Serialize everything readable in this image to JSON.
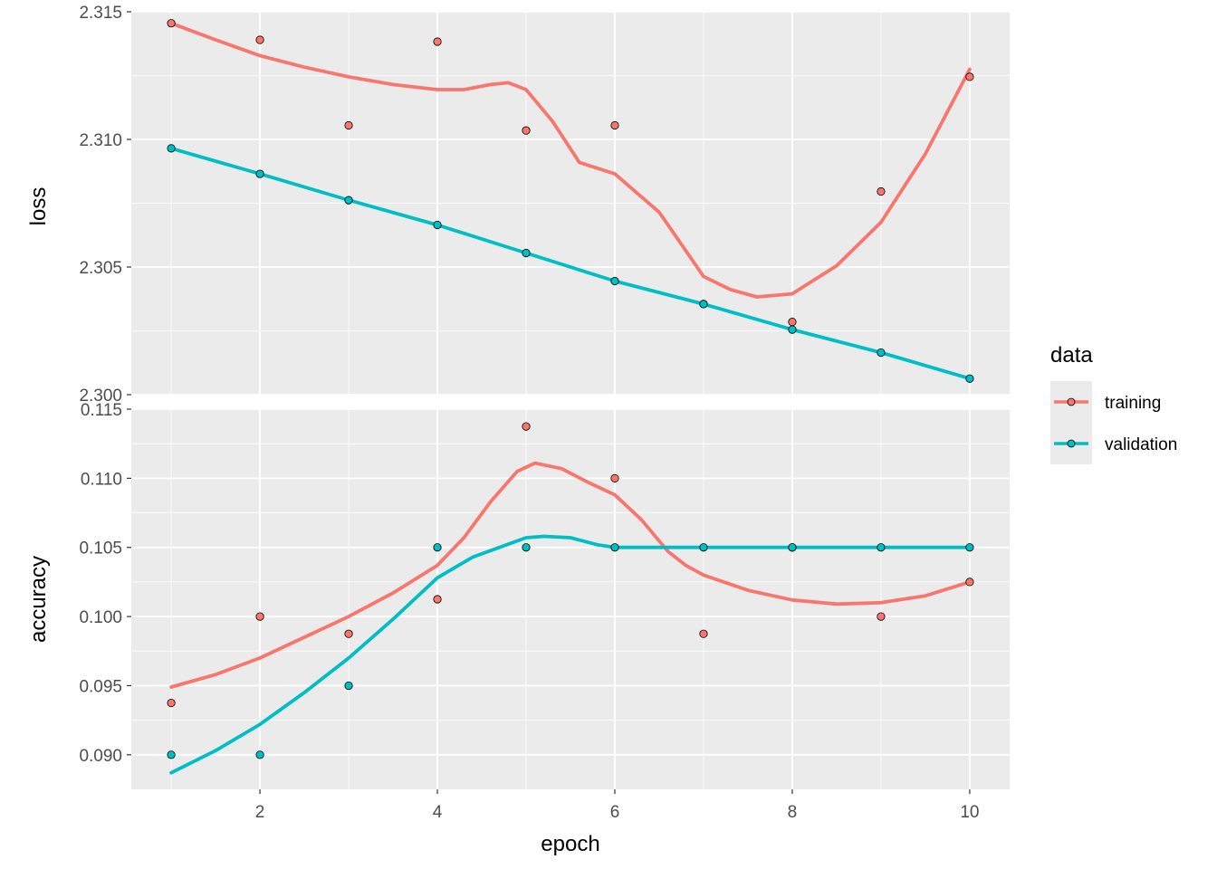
{
  "chart_data": [
    {
      "type": "line",
      "panel": "loss",
      "ylabel": "loss",
      "ylim": [
        2.3,
        2.315
      ],
      "yticks": [
        2.3,
        2.305,
        2.31,
        2.315
      ],
      "ytick_labels": [
        "2.300",
        "2.305",
        "2.310",
        "2.315"
      ],
      "grid": true,
      "series": [
        {
          "name": "training",
          "color": "#F8766D",
          "x": [
            1,
            2,
            3,
            4,
            5,
            6,
            7,
            8,
            9,
            10
          ],
          "values": [
            2.31455,
            2.3139,
            2.31055,
            2.31383,
            2.31035,
            2.31055,
            2.30355,
            2.30285,
            2.30796,
            2.31245
          ],
          "smooth_x": [
            1,
            1.5,
            2,
            2.5,
            3,
            3.5,
            4,
            4.3,
            4.6,
            4.8,
            5,
            5.3,
            5.6,
            6,
            6.5,
            7,
            7.3,
            7.6,
            8,
            8.5,
            9,
            9.5,
            10
          ],
          "smooth_y": [
            2.31455,
            2.3139,
            2.31328,
            2.31283,
            2.31245,
            2.31215,
            2.31195,
            2.31195,
            2.31215,
            2.31222,
            2.31195,
            2.3107,
            2.3091,
            2.30865,
            2.30715,
            2.30463,
            2.30412,
            2.30383,
            2.30395,
            2.30505,
            2.30675,
            2.30943,
            2.31275
          ]
        },
        {
          "name": "validation",
          "color": "#00BFC4",
          "x": [
            1,
            2,
            3,
            4,
            5,
            6,
            7,
            8,
            9,
            10
          ],
          "values": [
            2.30965,
            2.30865,
            2.30762,
            2.30665,
            2.30555,
            2.30445,
            2.30355,
            2.30255,
            2.30165,
            2.30063
          ],
          "smooth_x": [
            1,
            2,
            3,
            4,
            5,
            6,
            7,
            8,
            9,
            10
          ],
          "smooth_y": [
            2.30965,
            2.30865,
            2.30762,
            2.30665,
            2.30555,
            2.30445,
            2.30355,
            2.30255,
            2.30165,
            2.30063
          ]
        }
      ]
    },
    {
      "type": "line",
      "panel": "accuracy",
      "ylabel": "accuracy",
      "xlabel": "epoch",
      "ylim": [
        0.0875,
        0.115
      ],
      "xlim": [
        0.55,
        10.45
      ],
      "yticks": [
        0.09,
        0.095,
        0.1,
        0.105,
        0.11,
        0.115
      ],
      "ytick_labels": [
        "0.090",
        "0.095",
        "0.100",
        "0.105",
        "0.110",
        "0.115"
      ],
      "xticks": [
        2,
        4,
        6,
        8,
        10
      ],
      "xtick_labels": [
        "2",
        "4",
        "6",
        "8",
        "10"
      ],
      "grid": true,
      "series": [
        {
          "name": "training",
          "color": "#F8766D",
          "x": [
            1,
            2,
            3,
            4,
            5,
            6,
            7,
            8,
            9,
            10
          ],
          "values": [
            0.09375,
            0.1,
            0.09875,
            0.10125,
            0.11375,
            0.11,
            0.09875,
            0.105,
            0.1,
            0.1025
          ],
          "smooth_x": [
            1,
            1.5,
            2,
            2.5,
            3,
            3.5,
            4,
            4.3,
            4.6,
            4.9,
            5.1,
            5.4,
            5.7,
            6,
            6.3,
            6.6,
            6.8,
            7,
            7.5,
            8,
            8.5,
            9,
            9.5,
            10
          ],
          "smooth_y": [
            0.0949,
            0.0958,
            0.097,
            0.0985,
            0.1,
            0.1017,
            0.1037,
            0.1057,
            0.1083,
            0.1105,
            0.1111,
            0.1107,
            0.1097,
            0.1088,
            0.107,
            0.1047,
            0.1037,
            0.103,
            0.1019,
            0.1012,
            0.1009,
            0.101,
            0.1015,
            0.1025
          ]
        },
        {
          "name": "validation",
          "color": "#00BFC4",
          "x": [
            1,
            2,
            3,
            4,
            5,
            6,
            7,
            8,
            9,
            10
          ],
          "values": [
            0.09,
            0.09,
            0.095,
            0.105,
            0.105,
            0.105,
            0.105,
            0.105,
            0.105,
            0.105
          ],
          "smooth_x": [
            1,
            1.5,
            2,
            2.5,
            3,
            3.5,
            4,
            4.4,
            4.7,
            5,
            5.2,
            5.5,
            5.8,
            6,
            7,
            8,
            9,
            10
          ],
          "smooth_y": [
            0.0887,
            0.0903,
            0.0922,
            0.0945,
            0.097,
            0.0998,
            0.1028,
            0.1043,
            0.105,
            0.1057,
            0.1058,
            0.1057,
            0.1052,
            0.105,
            0.105,
            0.105,
            0.105,
            0.105
          ]
        }
      ]
    }
  ],
  "legend": {
    "title": "data",
    "position": "right",
    "items": [
      {
        "label": "training",
        "color": "#F8766D"
      },
      {
        "label": "validation",
        "color": "#00BFC4"
      }
    ]
  }
}
